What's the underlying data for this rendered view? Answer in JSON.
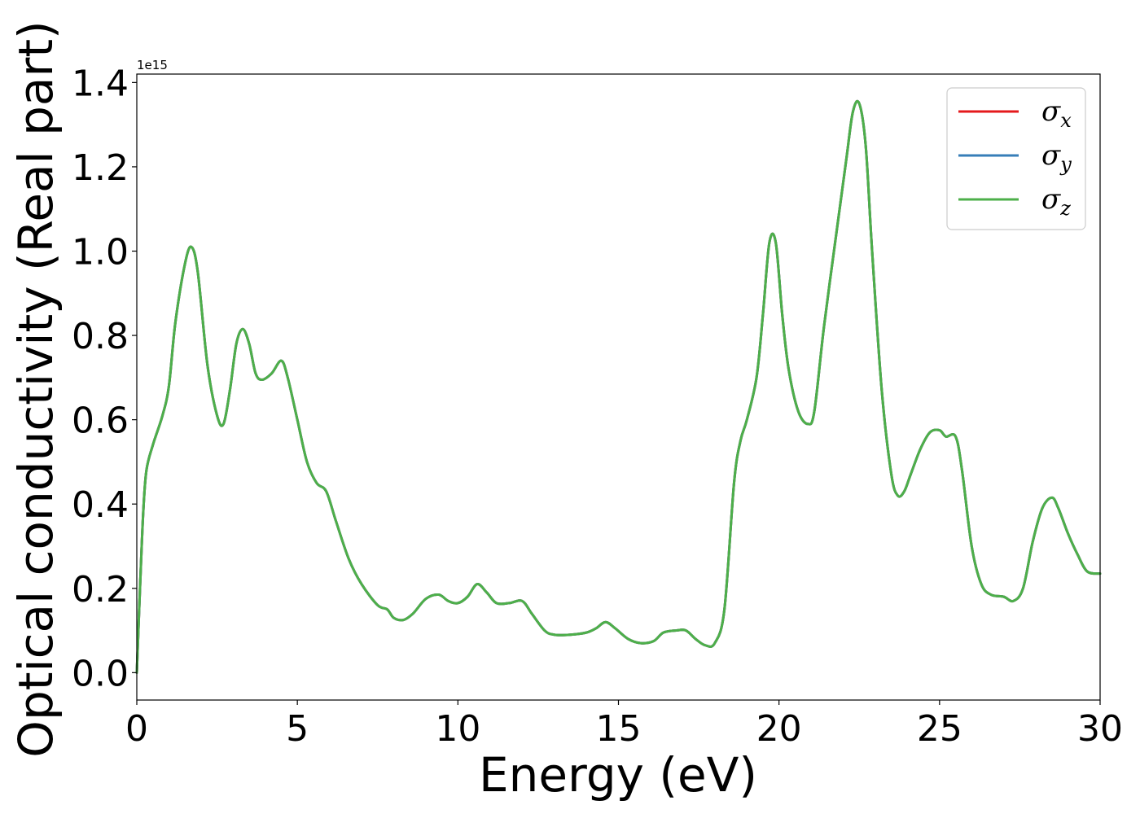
{
  "chart_data": {
    "type": "line",
    "xlabel": "Energy (eV)",
    "ylabel": "Optical conductivity (Real part)",
    "y_offset_label": "1e15",
    "xlim": [
      0,
      30
    ],
    "ylim": [
      -0.065,
      1.42
    ],
    "x_ticks": [
      0,
      5,
      10,
      15,
      20,
      25,
      30
    ],
    "x_tick_labels": [
      "0",
      "5",
      "10",
      "15",
      "20",
      "25",
      "30"
    ],
    "y_ticks": [
      0.0,
      0.2,
      0.4,
      0.6,
      0.8,
      1.0,
      1.2,
      1.4
    ],
    "y_tick_labels": [
      "0.0",
      "0.2",
      "0.4",
      "0.6",
      "0.8",
      "1.0",
      "1.2",
      "1.4"
    ],
    "grid": false,
    "legend_position": "top-right",
    "x": [
      0.0,
      0.1,
      0.2,
      0.3,
      0.5,
      0.8,
      1.0,
      1.2,
      1.5,
      1.7,
      1.9,
      2.2,
      2.5,
      2.7,
      2.9,
      3.1,
      3.3,
      3.5,
      3.7,
      3.9,
      4.2,
      4.5,
      4.7,
      5.0,
      5.3,
      5.6,
      5.9,
      6.2,
      6.6,
      7.0,
      7.5,
      7.8,
      8.0,
      8.3,
      8.6,
      9.0,
      9.4,
      9.7,
      10.0,
      10.3,
      10.6,
      10.9,
      11.2,
      11.6,
      12.0,
      12.3,
      12.7,
      13.0,
      13.5,
      14.0,
      14.3,
      14.6,
      14.9,
      15.3,
      15.7,
      16.1,
      16.4,
      16.8,
      17.1,
      17.4,
      17.7,
      18.0,
      18.3,
      18.6,
      18.8,
      19.0,
      19.3,
      19.5,
      19.7,
      19.9,
      20.1,
      20.3,
      20.6,
      20.9,
      21.1,
      21.4,
      21.8,
      22.1,
      22.3,
      22.5,
      22.7,
      22.9,
      23.2,
      23.5,
      23.7,
      23.9,
      24.1,
      24.4,
      24.7,
      25.0,
      25.2,
      25.5,
      25.7,
      26.0,
      26.3,
      26.6,
      27.0,
      27.3,
      27.6,
      27.9,
      28.2,
      28.5,
      28.7,
      29.0,
      29.3,
      29.6,
      30.0
    ],
    "series": [
      {
        "name": "σx",
        "color": "#e41a1c",
        "values": [
          0.0,
          0.2,
          0.38,
          0.48,
          0.54,
          0.61,
          0.68,
          0.83,
          0.97,
          1.01,
          0.95,
          0.73,
          0.61,
          0.59,
          0.67,
          0.78,
          0.815,
          0.78,
          0.71,
          0.695,
          0.71,
          0.74,
          0.7,
          0.6,
          0.5,
          0.45,
          0.43,
          0.36,
          0.27,
          0.21,
          0.16,
          0.15,
          0.13,
          0.125,
          0.14,
          0.175,
          0.185,
          0.17,
          0.165,
          0.18,
          0.21,
          0.19,
          0.165,
          0.165,
          0.17,
          0.14,
          0.1,
          0.09,
          0.09,
          0.095,
          0.105,
          0.12,
          0.105,
          0.08,
          0.07,
          0.075,
          0.095,
          0.1,
          0.1,
          0.08,
          0.065,
          0.07,
          0.15,
          0.45,
          0.55,
          0.6,
          0.7,
          0.85,
          1.02,
          1.02,
          0.85,
          0.72,
          0.62,
          0.59,
          0.62,
          0.82,
          1.05,
          1.22,
          1.33,
          1.35,
          1.25,
          1.0,
          0.67,
          0.47,
          0.42,
          0.43,
          0.47,
          0.53,
          0.57,
          0.575,
          0.56,
          0.56,
          0.48,
          0.3,
          0.21,
          0.185,
          0.18,
          0.17,
          0.2,
          0.31,
          0.39,
          0.415,
          0.39,
          0.33,
          0.28,
          0.24,
          0.235
        ]
      },
      {
        "name": "σy",
        "color": "#377eb8",
        "values": [
          0.0,
          0.2,
          0.38,
          0.48,
          0.54,
          0.61,
          0.68,
          0.83,
          0.97,
          1.01,
          0.95,
          0.73,
          0.61,
          0.59,
          0.67,
          0.78,
          0.815,
          0.78,
          0.71,
          0.695,
          0.71,
          0.74,
          0.7,
          0.6,
          0.5,
          0.45,
          0.43,
          0.36,
          0.27,
          0.21,
          0.16,
          0.15,
          0.13,
          0.125,
          0.14,
          0.175,
          0.185,
          0.17,
          0.165,
          0.18,
          0.21,
          0.19,
          0.165,
          0.165,
          0.17,
          0.14,
          0.1,
          0.09,
          0.09,
          0.095,
          0.105,
          0.12,
          0.105,
          0.08,
          0.07,
          0.075,
          0.095,
          0.1,
          0.1,
          0.08,
          0.065,
          0.07,
          0.15,
          0.45,
          0.55,
          0.6,
          0.7,
          0.85,
          1.02,
          1.02,
          0.85,
          0.72,
          0.62,
          0.59,
          0.62,
          0.82,
          1.05,
          1.22,
          1.33,
          1.35,
          1.25,
          1.0,
          0.67,
          0.47,
          0.42,
          0.43,
          0.47,
          0.53,
          0.57,
          0.575,
          0.56,
          0.56,
          0.48,
          0.3,
          0.21,
          0.185,
          0.18,
          0.17,
          0.2,
          0.31,
          0.39,
          0.415,
          0.39,
          0.33,
          0.28,
          0.24,
          0.235
        ]
      },
      {
        "name": "σz",
        "color": "#4daf4a",
        "values": [
          0.0,
          0.2,
          0.38,
          0.48,
          0.54,
          0.61,
          0.68,
          0.83,
          0.97,
          1.01,
          0.95,
          0.73,
          0.61,
          0.59,
          0.67,
          0.78,
          0.815,
          0.78,
          0.71,
          0.695,
          0.71,
          0.74,
          0.7,
          0.6,
          0.5,
          0.45,
          0.43,
          0.36,
          0.27,
          0.21,
          0.16,
          0.15,
          0.13,
          0.125,
          0.14,
          0.175,
          0.185,
          0.17,
          0.165,
          0.18,
          0.21,
          0.19,
          0.165,
          0.165,
          0.17,
          0.14,
          0.1,
          0.09,
          0.09,
          0.095,
          0.105,
          0.12,
          0.105,
          0.08,
          0.07,
          0.075,
          0.095,
          0.1,
          0.1,
          0.08,
          0.065,
          0.07,
          0.15,
          0.45,
          0.55,
          0.6,
          0.7,
          0.85,
          1.02,
          1.02,
          0.85,
          0.72,
          0.62,
          0.59,
          0.62,
          0.82,
          1.05,
          1.22,
          1.33,
          1.35,
          1.25,
          1.0,
          0.67,
          0.47,
          0.42,
          0.43,
          0.47,
          0.53,
          0.57,
          0.575,
          0.56,
          0.56,
          0.48,
          0.3,
          0.21,
          0.185,
          0.18,
          0.17,
          0.2,
          0.31,
          0.39,
          0.415,
          0.39,
          0.33,
          0.28,
          0.24,
          0.235
        ]
      }
    ],
    "legend": [
      {
        "symbol": "σ",
        "sub": "x",
        "color": "#e41a1c"
      },
      {
        "symbol": "σ",
        "sub": "y",
        "color": "#377eb8"
      },
      {
        "symbol": "σ",
        "sub": "z",
        "color": "#4daf4a"
      }
    ]
  }
}
